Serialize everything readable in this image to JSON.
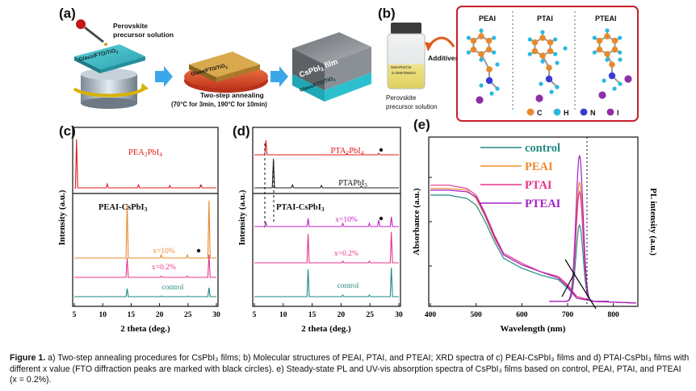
{
  "panels": {
    "a": {
      "letter": "(a)",
      "precursor_label_1": "Perovskite",
      "precursor_label_2": "precursor solution",
      "substrate_label": "Glass/FTO/TiO",
      "substrate_sub": "2",
      "annealing_title": "Two-step annealing",
      "annealing_detail": "(70°C for 3min, 190°C for 10min)",
      "film_label": "CsPbI",
      "film_sub": "3",
      "film_suffix": " film"
    },
    "b": {
      "letter": "(b)",
      "vial_text_1": "DMAPbI",
      "vial_text_2": "/CsI",
      "vial_text_3": "in DMF/DMSO",
      "additives": "Additives",
      "precursor_label_1": "Perovskite",
      "precursor_label_2": "precursor solution",
      "molecules": [
        "PEAI",
        "PTAI",
        "PTEAI"
      ],
      "legend": [
        {
          "sym": "C",
          "color": "#e8892c"
        },
        {
          "sym": "H",
          "color": "#2bb8e0"
        },
        {
          "sym": "N",
          "color": "#3a3ad6"
        },
        {
          "sym": "I",
          "color": "#8e2ea8"
        }
      ]
    },
    "c": {
      "letter": "(c)"
    },
    "d": {
      "letter": "(d)"
    },
    "e": {
      "letter": "(e)"
    }
  },
  "chart_data": [
    {
      "id": "c",
      "type": "line",
      "xlabel": "2 theta (deg.)",
      "ylabel": "Intensity (a.u.)",
      "xlim": [
        5,
        30
      ],
      "xticks": [
        5,
        10,
        15,
        20,
        25,
        30
      ],
      "top_label": "PEA",
      "top_label_sub1": "2",
      "top_label_mid": "PbI",
      "top_label_sub2": "4",
      "section_label": "PEAI-CsPbI",
      "section_label_sub": "3",
      "series": [
        {
          "name": "PEA2PbI4",
          "color": "#e01818",
          "peaks": [
            [
              5.4,
              1.0
            ],
            [
              10.8,
              0.08
            ],
            [
              16.3,
              0.06
            ],
            [
              21.8,
              0.05
            ],
            [
              27.3,
              0.06
            ]
          ]
        },
        {
          "name": "x=10%",
          "color": "#e8892c",
          "peaks": [
            [
              14.3,
              0.9
            ],
            [
              28.7,
              0.95
            ],
            [
              20.3,
              0.05
            ],
            [
              24.9,
              0.05
            ]
          ]
        },
        {
          "name": "x=0.2%",
          "color": "#e8338a",
          "peaks": [
            [
              14.3,
              0.6
            ],
            [
              28.7,
              0.7
            ],
            [
              20.3,
              0.04
            ],
            [
              24.9,
              0.04
            ]
          ]
        },
        {
          "name": "control",
          "color": "#1f8a80",
          "peaks": [
            [
              14.3,
              0.5
            ],
            [
              28.7,
              0.55
            ],
            [
              20.3,
              0.04
            ],
            [
              24.9,
              0.04
            ]
          ]
        }
      ],
      "labels": [
        "x=10%",
        "x=0.2%",
        "control"
      ]
    },
    {
      "id": "d",
      "type": "line",
      "xlabel": "2 theta (deg.)",
      "ylabel": "Intensity (a.u.)",
      "xlim": [
        5,
        30
      ],
      "xticks": [
        5,
        10,
        15,
        20,
        25,
        30
      ],
      "top_label": "PTA",
      "top_label_sub1": "2",
      "top_label_mid": "PbI",
      "top_label_sub2": "4",
      "second_label": "PTAPbI",
      "second_label_sub": "3",
      "section_label": "PTAI-CsPbI",
      "section_label_sub": "3",
      "series": [
        {
          "name": "PTA2PbI4",
          "color": "#e01818",
          "peaks": [
            [
              7.0,
              1.0
            ],
            [
              21.0,
              0.08
            ],
            [
              26.5,
              0.1
            ]
          ]
        },
        {
          "name": "PTAPbI3",
          "color": "#222222",
          "peaks": [
            [
              8.3,
              1.0
            ],
            [
              11.6,
              0.1
            ],
            [
              16.6,
              0.08
            ],
            [
              23.5,
              0.05
            ]
          ]
        },
        {
          "name": "x=10%",
          "color": "#c51fc5",
          "peaks": [
            [
              7.0,
              0.12
            ],
            [
              14.3,
              0.25
            ],
            [
              28.7,
              0.3
            ],
            [
              26.5,
              0.2
            ],
            [
              20.3,
              0.1
            ],
            [
              24.9,
              0.1
            ]
          ]
        },
        {
          "name": "x=0.2%",
          "color": "#e8338a",
          "peaks": [
            [
              14.3,
              0.8
            ],
            [
              28.7,
              0.85
            ],
            [
              20.3,
              0.05
            ],
            [
              24.9,
              0.05
            ]
          ]
        },
        {
          "name": "control",
          "color": "#1f8a80",
          "peaks": [
            [
              14.3,
              0.85
            ],
            [
              28.7,
              0.9
            ],
            [
              20.3,
              0.05
            ],
            [
              24.9,
              0.05
            ]
          ]
        }
      ],
      "labels": [
        "x=10%",
        "x=0.2%",
        "control"
      ]
    },
    {
      "id": "e",
      "type": "line",
      "xlabel": "Wavelength (nm)",
      "ylabel": "Absorbance (a.u.)",
      "y2label": "PL intensity (a.u.)",
      "xlim": [
        400,
        850
      ],
      "xticks": [
        400,
        500,
        600,
        700,
        800
      ],
      "series": [
        {
          "name": "control",
          "color": "#1f8a80",
          "abs": [
            0.66,
            0.66,
            0.64,
            0.6,
            0.5,
            0.38,
            0.28,
            0.22,
            0.18,
            0.15,
            0.1,
            0.04,
            0.02,
            0.01
          ],
          "pl": 0.46
        },
        {
          "name": "PEAI",
          "color": "#f08a2a",
          "abs": [
            0.7,
            0.7,
            0.69,
            0.64,
            0.53,
            0.4,
            0.3,
            0.24,
            0.2,
            0.16,
            0.11,
            0.04,
            0.02,
            0.01
          ],
          "pl": 0.72
        },
        {
          "name": "PTAI",
          "color": "#e8338a",
          "abs": [
            0.72,
            0.72,
            0.7,
            0.66,
            0.55,
            0.42,
            0.31,
            0.25,
            0.2,
            0.17,
            0.12,
            0.05,
            0.02,
            0.01
          ],
          "pl": 0.66
        },
        {
          "name": "PTEAI",
          "color": "#a320c6",
          "abs": [
            0.69,
            0.69,
            0.68,
            0.65,
            0.54,
            0.41,
            0.3,
            0.24,
            0.2,
            0.16,
            0.11,
            0.04,
            0.02,
            0.01
          ],
          "pl": 0.88
        }
      ]
    }
  ],
  "caption": {
    "lead": "Figure 1.",
    "text": " a) Two-step annealing procedures for CsPbI₃ films; b) Molecular structures of PEAI, PTAI, and PTEAI; XRD spectra of c) PEAI-CsPbI₃ films and d) PTAI-CsPbI₃ films with different x value (FTO diffraction peaks are marked with black circles). e) Steady-state PL and UV-vis absorption spectra of CsPbI₃ films based on control, PEAI, PTAI, and PTEAI (x = 0.2%)."
  },
  "colors": {
    "arrow": "#3aa8e8",
    "molecule_frame": "#c8202a"
  }
}
